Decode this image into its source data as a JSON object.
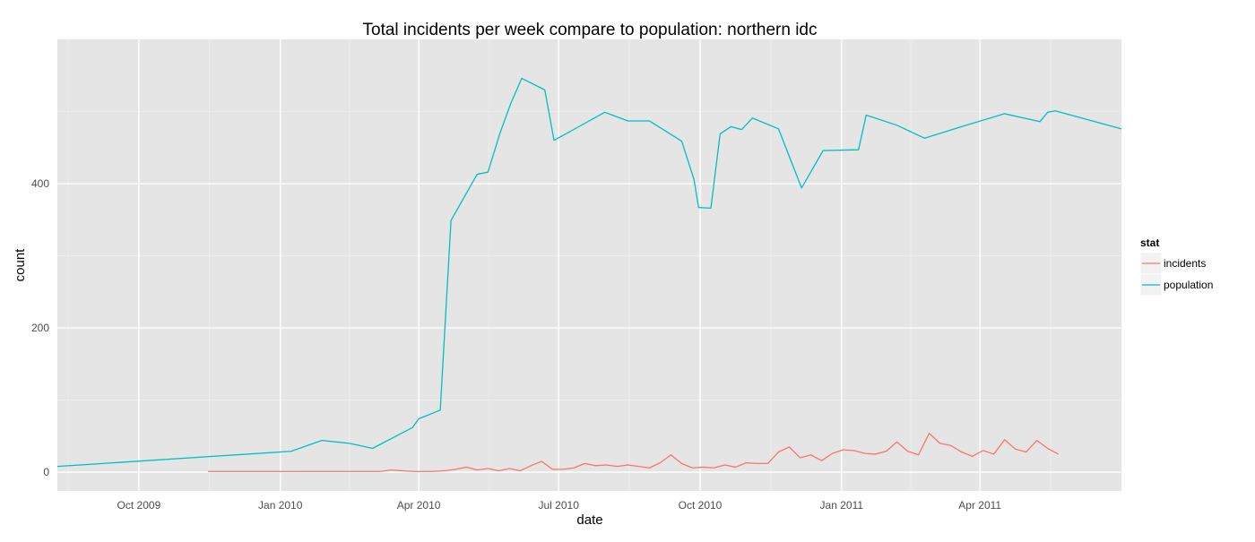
{
  "chart_data": {
    "type": "line",
    "title": "Total incidents per week compare to population: northern idc",
    "xlabel": "date",
    "ylabel": "count",
    "x_type": "date",
    "xlim": [
      "2009-08-09",
      "2011-07-02"
    ],
    "ylim": [
      -26,
      600
    ],
    "x_ticks": [
      {
        "date": "2009-10-01",
        "label": "Oct 2009"
      },
      {
        "date": "2010-01-01",
        "label": "Jan 2010"
      },
      {
        "date": "2010-04-01",
        "label": "Apr 2010"
      },
      {
        "date": "2010-07-01",
        "label": "Jul 2010"
      },
      {
        "date": "2010-10-01",
        "label": "Oct 2010"
      },
      {
        "date": "2011-01-01",
        "label": "Jan 2011"
      },
      {
        "date": "2011-04-01",
        "label": "Apr 2011"
      }
    ],
    "y_ticks": [
      0,
      200,
      400
    ],
    "grid": true,
    "legend": {
      "title": "stat",
      "position": "right",
      "entries": [
        {
          "label": "incidents",
          "color": "#F8766D"
        },
        {
          "label": "population",
          "color": "#00BFC4"
        }
      ]
    },
    "series": [
      {
        "name": "incidents",
        "color": "#F8766D",
        "points": [
          [
            "2009-11-15",
            1
          ],
          [
            "2009-11-22",
            1
          ],
          [
            "2009-11-29",
            1
          ],
          [
            "2009-12-06",
            1
          ],
          [
            "2009-12-13",
            1
          ],
          [
            "2009-12-20",
            1
          ],
          [
            "2009-12-27",
            1
          ],
          [
            "2010-01-03",
            1
          ],
          [
            "2010-01-10",
            1
          ],
          [
            "2010-01-17",
            1
          ],
          [
            "2010-01-24",
            1
          ],
          [
            "2010-01-31",
            1
          ],
          [
            "2010-02-07",
            1
          ],
          [
            "2010-02-14",
            1
          ],
          [
            "2010-02-21",
            1
          ],
          [
            "2010-02-28",
            1
          ],
          [
            "2010-03-07",
            1
          ],
          [
            "2010-03-14",
            3
          ],
          [
            "2010-03-21",
            2
          ],
          [
            "2010-03-28",
            1
          ],
          [
            "2010-04-04",
            1
          ],
          [
            "2010-04-11",
            1
          ],
          [
            "2010-04-18",
            2
          ],
          [
            "2010-04-25",
            4
          ],
          [
            "2010-05-02",
            7
          ],
          [
            "2010-05-09",
            3
          ],
          [
            "2010-05-16",
            5
          ],
          [
            "2010-05-23",
            2
          ],
          [
            "2010-05-30",
            5
          ],
          [
            "2010-06-06",
            2
          ],
          [
            "2010-06-13",
            9
          ],
          [
            "2010-06-20",
            15
          ],
          [
            "2010-06-27",
            4
          ],
          [
            "2010-07-04",
            4
          ],
          [
            "2010-07-11",
            6
          ],
          [
            "2010-07-18",
            12
          ],
          [
            "2010-07-25",
            9
          ],
          [
            "2010-08-01",
            10
          ],
          [
            "2010-08-08",
            8
          ],
          [
            "2010-08-15",
            10
          ],
          [
            "2010-08-22",
            8
          ],
          [
            "2010-08-29",
            6
          ],
          [
            "2010-09-05",
            13
          ],
          [
            "2010-09-12",
            24
          ],
          [
            "2010-09-19",
            12
          ],
          [
            "2010-09-26",
            6
          ],
          [
            "2010-10-03",
            7
          ],
          [
            "2010-10-10",
            6
          ],
          [
            "2010-10-17",
            10
          ],
          [
            "2010-10-24",
            7
          ],
          [
            "2010-10-31",
            13
          ],
          [
            "2010-11-07",
            12
          ],
          [
            "2010-11-14",
            12
          ],
          [
            "2010-11-21",
            28
          ],
          [
            "2010-11-28",
            35
          ],
          [
            "2010-12-05",
            20
          ],
          [
            "2010-12-12",
            24
          ],
          [
            "2010-12-19",
            16
          ],
          [
            "2010-12-26",
            26
          ],
          [
            "2011-01-02",
            31
          ],
          [
            "2011-01-09",
            30
          ],
          [
            "2011-01-16",
            26
          ],
          [
            "2011-01-23",
            25
          ],
          [
            "2011-01-30",
            29
          ],
          [
            "2011-02-06",
            42
          ],
          [
            "2011-02-13",
            29
          ],
          [
            "2011-02-20",
            24
          ],
          [
            "2011-02-27",
            54
          ],
          [
            "2011-03-06",
            40
          ],
          [
            "2011-03-13",
            37
          ],
          [
            "2011-03-20",
            28
          ],
          [
            "2011-03-27",
            22
          ],
          [
            "2011-04-03",
            30
          ],
          [
            "2011-04-10",
            25
          ],
          [
            "2011-04-17",
            45
          ],
          [
            "2011-04-24",
            32
          ],
          [
            "2011-05-01",
            28
          ],
          [
            "2011-05-08",
            44
          ],
          [
            "2011-05-15",
            33
          ],
          [
            "2011-05-22",
            25
          ]
        ]
      },
      {
        "name": "population",
        "color": "#00BFC4",
        "points": [
          [
            "2009-08-09",
            8
          ],
          [
            "2010-01-08",
            29
          ],
          [
            "2010-01-28",
            44
          ],
          [
            "2010-02-15",
            40
          ],
          [
            "2010-03-02",
            33
          ],
          [
            "2010-03-28",
            62
          ],
          [
            "2010-04-01",
            74
          ],
          [
            "2010-04-15",
            86
          ],
          [
            "2010-04-22",
            349
          ],
          [
            "2010-05-09",
            413
          ],
          [
            "2010-05-16",
            416
          ],
          [
            "2010-05-24",
            471
          ],
          [
            "2010-05-31",
            512
          ],
          [
            "2010-06-07",
            546
          ],
          [
            "2010-06-22",
            530
          ],
          [
            "2010-06-28",
            460
          ],
          [
            "2010-07-31",
            499
          ],
          [
            "2010-08-15",
            487
          ],
          [
            "2010-08-29",
            487
          ],
          [
            "2010-09-19",
            459
          ],
          [
            "2010-09-27",
            406
          ],
          [
            "2010-09-30",
            367
          ],
          [
            "2010-10-08",
            366
          ],
          [
            "2010-10-14",
            469
          ],
          [
            "2010-10-21",
            479
          ],
          [
            "2010-10-28",
            475
          ],
          [
            "2010-11-04",
            491
          ],
          [
            "2010-11-21",
            476
          ],
          [
            "2010-12-06",
            394
          ],
          [
            "2010-12-20",
            446
          ],
          [
            "2011-01-12",
            447
          ],
          [
            "2011-01-17",
            495
          ],
          [
            "2011-02-06",
            481
          ],
          [
            "2011-02-24",
            463
          ],
          [
            "2011-03-20",
            479
          ],
          [
            "2011-04-17",
            497
          ],
          [
            "2011-05-10",
            486
          ],
          [
            "2011-05-15",
            499
          ],
          [
            "2011-05-20",
            501
          ],
          [
            "2011-07-02",
            476
          ]
        ]
      }
    ]
  }
}
